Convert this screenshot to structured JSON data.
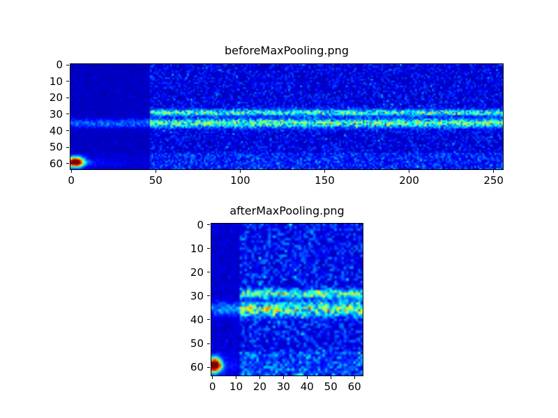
{
  "figure": {
    "background": "#ffffff",
    "text_color": "#000000",
    "axes_edge_color": "#000000"
  },
  "chart_data": [
    {
      "type": "heatmap",
      "title": "beforeMaxPooling.png",
      "xlabel": "",
      "ylabel": "",
      "x_ticks": [
        0,
        50,
        100,
        150,
        200,
        250
      ],
      "y_ticks": [
        0,
        10,
        20,
        30,
        40,
        50,
        60
      ],
      "x_range": [
        0,
        255
      ],
      "y_range": [
        0,
        63
      ],
      "cols": 256,
      "rows": 64,
      "grid": false,
      "colormap": "jet",
      "background_value": 0.05,
      "noise_amplitude": 0.16,
      "speckle_probability": 0.02,
      "speckle_boost": 0.13,
      "quiet_region": {
        "col_end": 47,
        "scale": 0.3
      },
      "bands": [
        {
          "row": 29,
          "sigma": 1.3,
          "intensity": 0.5,
          "col_start": 47
        },
        {
          "row": 35.5,
          "sigma": 1.8,
          "intensity": 0.55,
          "col_start": 0
        }
      ],
      "hotspot": {
        "col": 2.5,
        "row": 59,
        "col_sigma": 3.2,
        "row_sigma": 2.0,
        "intensity": 1.1
      },
      "hotspot_tail": {
        "row": 59.5,
        "row_sigma": 1.5,
        "col_decay": 12,
        "intensity": 0.3
      },
      "bottom_noise_rows": 54,
      "seed": 1337
    },
    {
      "type": "heatmap",
      "title": "afterMaxPooling.png",
      "xlabel": "",
      "ylabel": "",
      "x_ticks": [
        0,
        10,
        20,
        30,
        40,
        50,
        60
      ],
      "y_ticks": [
        0,
        10,
        20,
        30,
        40,
        50,
        60
      ],
      "x_range": [
        0,
        63
      ],
      "y_range": [
        0,
        63
      ],
      "cols": 64,
      "rows": 64,
      "grid": false,
      "colormap": "jet",
      "background_value": 0.06,
      "noise_amplitude": 0.2,
      "speckle_probability": 0.03,
      "speckle_boost": 0.14,
      "quiet_region": {
        "col_end": 12,
        "scale": 0.3
      },
      "bands": [
        {
          "row": 29,
          "sigma": 1.2,
          "intensity": 0.55,
          "col_start": 12
        },
        {
          "row": 35.5,
          "sigma": 1.9,
          "intensity": 0.6,
          "col_start": 0
        }
      ],
      "hotspot": {
        "col": 1,
        "row": 59,
        "col_sigma": 1.8,
        "row_sigma": 2.0,
        "intensity": 1.15
      },
      "hotspot_tail": {
        "row": 59.5,
        "row_sigma": 1.3,
        "col_decay": 6,
        "intensity": 0.25
      },
      "bottom_noise_rows": 54,
      "seed": 2024
    }
  ]
}
